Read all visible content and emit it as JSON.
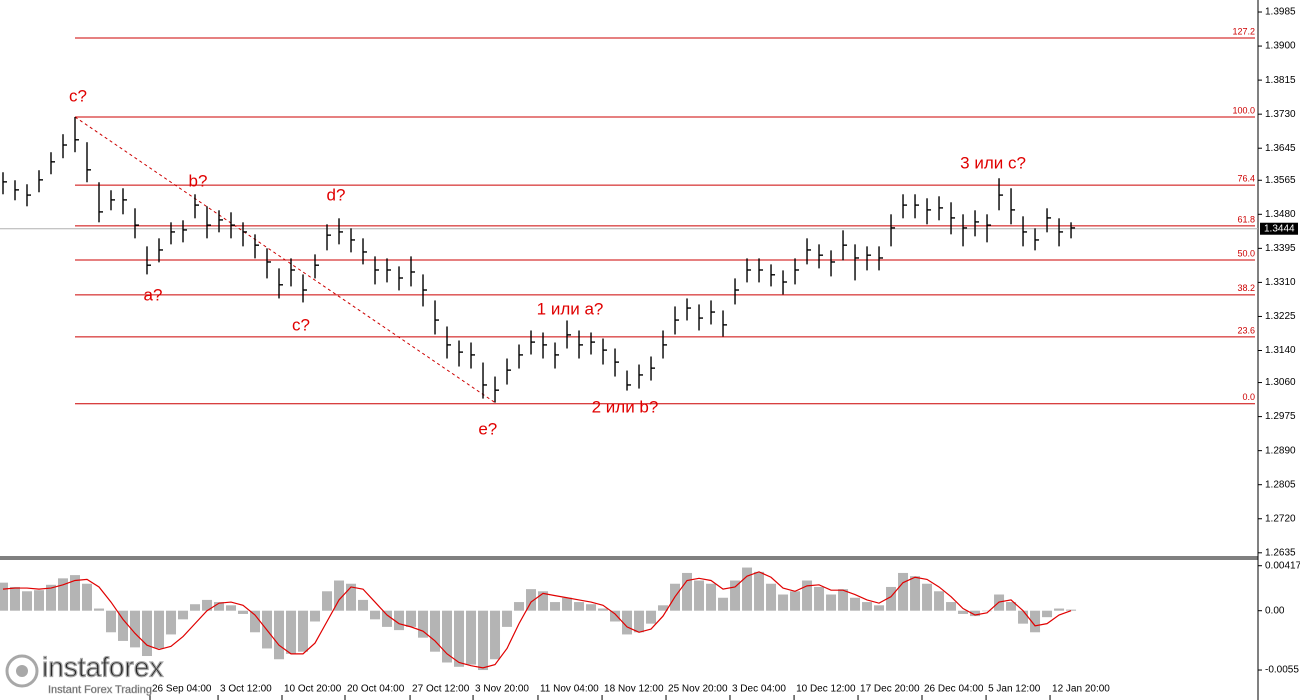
{
  "chart_data": [
    {
      "type": "ohlc",
      "color": "#000000",
      "fib_color": "#cc0000",
      "label_color": "#e00000",
      "x": [
        0,
        1,
        2,
        3,
        4,
        5,
        6,
        7,
        8,
        9,
        10,
        11,
        12,
        13,
        14,
        15,
        16,
        17,
        18,
        19,
        20,
        21,
        22,
        23,
        24,
        25,
        26,
        27,
        28,
        29,
        30,
        31,
        32,
        33,
        34,
        35,
        36,
        37,
        38,
        39,
        40,
        41,
        42,
        43,
        44,
        45,
        46,
        47,
        48,
        49,
        50,
        51,
        52,
        53,
        54,
        55,
        56,
        57,
        58,
        59,
        60,
        61,
        62,
        63,
        64,
        65,
        66,
        67,
        68,
        69,
        70,
        71,
        72,
        73,
        74,
        75,
        76,
        77,
        78,
        79,
        80,
        81,
        82,
        83,
        84,
        85,
        86,
        87,
        88,
        89
      ],
      "high": [
        1.3585,
        1.3565,
        1.3555,
        1.359,
        1.3635,
        1.368,
        1.3723,
        1.366,
        1.356,
        1.354,
        1.3545,
        1.3495,
        1.34,
        1.342,
        1.346,
        1.3465,
        1.353,
        1.35,
        1.349,
        1.3485,
        1.346,
        1.343,
        1.3395,
        1.3345,
        1.337,
        1.333,
        1.338,
        1.3455,
        1.347,
        1.3445,
        1.342,
        1.3375,
        1.337,
        1.335,
        1.3375,
        1.333,
        1.3265,
        1.32,
        1.3165,
        1.316,
        1.311,
        1.3075,
        1.312,
        1.3155,
        1.319,
        1.3185,
        1.316,
        1.3215,
        1.319,
        1.3185,
        1.317,
        1.3145,
        1.309,
        1.3105,
        1.3125,
        1.319,
        1.325,
        1.327,
        1.3255,
        1.3265,
        1.324,
        1.332,
        1.337,
        1.337,
        1.3355,
        1.334,
        1.337,
        1.342,
        1.3405,
        1.339,
        1.344,
        1.3405,
        1.34,
        1.34,
        1.348,
        1.353,
        1.353,
        1.352,
        1.3525,
        1.351,
        1.348,
        1.349,
        1.348,
        1.357,
        1.3545,
        1.3475,
        1.3445,
        1.3495,
        1.347,
        1.346
      ],
      "low": [
        1.353,
        1.3515,
        1.35,
        1.3535,
        1.358,
        1.362,
        1.3635,
        1.356,
        1.346,
        1.349,
        1.348,
        1.342,
        1.333,
        1.336,
        1.3405,
        1.341,
        1.347,
        1.342,
        1.3435,
        1.342,
        1.34,
        1.337,
        1.332,
        1.327,
        1.33,
        1.326,
        1.332,
        1.339,
        1.3405,
        1.3385,
        1.3355,
        1.3305,
        1.331,
        1.329,
        1.33,
        1.325,
        1.318,
        1.312,
        1.31,
        1.3095,
        1.302,
        1.301,
        1.3055,
        1.3095,
        1.313,
        1.312,
        1.3095,
        1.3145,
        1.312,
        1.313,
        1.3105,
        1.3075,
        1.304,
        1.3045,
        1.3065,
        1.312,
        1.318,
        1.3215,
        1.319,
        1.3205,
        1.3175,
        1.3255,
        1.331,
        1.331,
        1.33,
        1.328,
        1.3305,
        1.3355,
        1.3345,
        1.3325,
        1.3365,
        1.3315,
        1.334,
        1.334,
        1.34,
        1.347,
        1.347,
        1.3455,
        1.3465,
        1.343,
        1.34,
        1.3425,
        1.341,
        1.349,
        1.3455,
        1.34,
        1.339,
        1.3435,
        1.34,
        1.342
      ],
      "close": [
        1.3561,
        1.3541,
        1.3528,
        1.3566,
        1.3611,
        1.3653,
        1.3666,
        1.3591,
        1.3486,
        1.3516,
        1.3516,
        1.3453,
        1.3353,
        1.3391,
        1.3436,
        1.3441,
        1.3503,
        1.3453,
        1.3466,
        1.3453,
        1.3436,
        1.3403,
        1.3361,
        1.3304,
        1.3341,
        1.3291,
        1.3353,
        1.3428,
        1.3436,
        1.3416,
        1.3386,
        1.3341,
        1.3341,
        1.3321,
        1.3336,
        1.3291,
        1.3216,
        1.3154,
        1.3136,
        1.3129,
        1.3054,
        1.3041,
        1.3091,
        1.3129,
        1.3161,
        1.3154,
        1.3129,
        1.3179,
        1.3154,
        1.3161,
        1.3141,
        1.3111,
        1.3054,
        1.3079,
        1.3096,
        1.3154,
        1.3216,
        1.3246,
        1.3221,
        1.3236,
        1.3204,
        1.3291,
        1.3341,
        1.3341,
        1.3329,
        1.3311,
        1.3341,
        1.3391,
        1.3378,
        1.3361,
        1.3403,
        1.3371,
        1.3378,
        1.3371,
        1.3446,
        1.3503,
        1.3503,
        1.3491,
        1.3496,
        1.3471,
        1.3446,
        1.3461,
        1.3453,
        1.3528,
        1.3491,
        1.3436,
        1.3416,
        1.3471,
        1.3436,
        1.3446
      ],
      "xlim": [
        -0.25,
        104.58
      ],
      "ylim": [
        1.2627,
        1.4015
      ],
      "yticks": [
        1.3985,
        {
          "value": 1.39,
          "label": "1.3900"
        },
        1.3815,
        {
          "value": 1.373,
          "label": "1.3730"
        },
        1.3645,
        1.3565,
        {
          "value": 1.348,
          "label": "1.3480"
        },
        1.3395,
        {
          "value": 1.331,
          "label": "1.3310"
        },
        1.3225,
        {
          "value": 1.314,
          "label": "1.3140"
        },
        {
          "value": 1.306,
          "label": "1.3060"
        },
        1.2975,
        {
          "value": 1.289,
          "label": "1.2890"
        },
        1.2805,
        {
          "value": 1.272,
          "label": "1.2720"
        },
        1.2635
      ],
      "last_price": 1.3444,
      "fib_start_bar": 6,
      "fib_levels": [
        {
          "label": "127.2",
          "price": 1.392
        },
        {
          "label": "100.0",
          "price": 1.3723
        },
        {
          "label": "76.4",
          "price": 1.3553
        },
        {
          "label": "61.8",
          "price": 1.3451
        },
        {
          "label": "50.0",
          "price": 1.3366
        },
        {
          "label": "38.2",
          "price": 1.3279
        },
        {
          "label": "23.6",
          "price": 1.3174
        },
        {
          "label": "0.0",
          "price": 1.3007
        }
      ],
      "trendline": {
        "start_bar": 6,
        "start_price": 1.3723,
        "end_bar": 41,
        "end_price": 1.301
      },
      "annotations": [
        {
          "text": "c?",
          "x": 6.25,
          "y": 1.3773
        },
        {
          "text": "b?",
          "x": 16.25,
          "y": 1.3561
        },
        {
          "text": "a?",
          "x": 12.5,
          "y": 1.3276
        },
        {
          "text": "d?",
          "x": 27.75,
          "y": 1.3526
        },
        {
          "text": "c?",
          "x": 24.83,
          "y": 1.3201
        },
        {
          "text": "e?",
          "x": 40.4,
          "y": 1.2942
        },
        {
          "text": "1 или a?",
          "x": 47.25,
          "y": 1.3241
        },
        {
          "text": "2 или b?",
          "x": 51.83,
          "y": 1.2997
        },
        {
          "text": "3 или c?",
          "x": 82.5,
          "y": 1.3606
        }
      ]
    },
    {
      "type": "macd",
      "color": "#b4b4b4",
      "signal_color": "#e00000",
      "x": [
        0,
        1,
        2,
        3,
        4,
        5,
        6,
        7,
        8,
        9,
        10,
        11,
        12,
        13,
        14,
        15,
        16,
        17,
        18,
        19,
        20,
        21,
        22,
        23,
        24,
        25,
        26,
        27,
        28,
        29,
        30,
        31,
        32,
        33,
        34,
        35,
        36,
        37,
        38,
        39,
        40,
        41,
        42,
        43,
        44,
        45,
        46,
        47,
        48,
        49,
        50,
        51,
        52,
        53,
        54,
        55,
        56,
        57,
        58,
        59,
        60,
        61,
        62,
        63,
        64,
        65,
        66,
        67,
        68,
        69,
        70,
        71,
        72,
        73,
        74,
        75,
        76,
        77,
        78,
        79,
        80,
        81,
        82,
        83,
        84,
        85,
        86,
        87,
        88,
        89
      ],
      "values": [
        0.0026,
        0.0022,
        0.0018,
        0.0019,
        0.0024,
        0.003,
        0.0033,
        0.0025,
        0.0002,
        -0.002,
        -0.0028,
        -0.0034,
        -0.0042,
        -0.0035,
        -0.0022,
        -0.0008,
        0.0006,
        0.001,
        0.0008,
        0.0005,
        -0.0003,
        -0.002,
        -0.0035,
        -0.0045,
        -0.004,
        -0.0038,
        -0.001,
        0.0018,
        0.0028,
        0.0025,
        0.001,
        -0.0008,
        -0.0015,
        -0.0018,
        -0.0015,
        -0.0025,
        -0.0038,
        -0.0048,
        -0.0052,
        -0.005,
        -0.0055,
        -0.0045,
        -0.0015,
        0.0008,
        0.002,
        0.0018,
        0.0008,
        0.0012,
        0.0008,
        0.0006,
        0.0002,
        -0.001,
        -0.0022,
        -0.002,
        -0.0012,
        0.0005,
        0.0025,
        0.0035,
        0.0028,
        0.0025,
        0.0012,
        0.0028,
        0.004,
        0.0036,
        0.0025,
        0.0015,
        0.0018,
        0.0028,
        0.0022,
        0.0015,
        0.002,
        0.0012,
        0.0008,
        0.0005,
        0.0022,
        0.0035,
        0.0032,
        0.0025,
        0.0018,
        0.0008,
        -0.0003,
        -0.0005,
        0.0,
        0.0015,
        0.0008,
        -0.0012,
        -0.002,
        -0.0006,
        0.0002,
        0.0001
      ],
      "signal": [
        0.002,
        0.0021,
        0.0021,
        0.002,
        0.0021,
        0.0024,
        0.0028,
        0.0029,
        0.0022,
        0.0008,
        -0.0008,
        -0.0021,
        -0.0032,
        -0.0036,
        -0.0033,
        -0.0024,
        -0.0012,
        0.0,
        0.0007,
        0.0008,
        0.0005,
        -0.0004,
        -0.0018,
        -0.0032,
        -0.004,
        -0.004,
        -0.003,
        -0.001,
        0.001,
        0.0022,
        0.002,
        0.0008,
        -0.0004,
        -0.0012,
        -0.0015,
        -0.0019,
        -0.0028,
        -0.004,
        -0.0048,
        -0.0051,
        -0.0053,
        -0.005,
        -0.0035,
        -0.0012,
        0.0008,
        0.0016,
        0.0014,
        0.0012,
        0.001,
        0.0008,
        0.0005,
        -0.0003,
        -0.0015,
        -0.002,
        -0.0017,
        -0.0005,
        0.0013,
        0.0028,
        0.003,
        0.0028,
        0.002,
        0.0022,
        0.0032,
        0.0036,
        0.0031,
        0.0021,
        0.0018,
        0.0023,
        0.0024,
        0.0019,
        0.0019,
        0.0015,
        0.001,
        0.0007,
        0.0013,
        0.0026,
        0.0031,
        0.0029,
        0.0022,
        0.0013,
        0.0002,
        -0.0004,
        -0.0002,
        0.0008,
        0.001,
        0.0,
        -0.0014,
        -0.0012,
        -0.0004,
        0.0
      ],
      "xlim": [
        -0.25,
        104.58
      ],
      "ylim": [
        -0.008,
        0.0047
      ],
      "yticks": [
        0.00417,
        {
          "value": 0,
          "label": "0.00"
        },
        -0.0055
      ],
      "xticks": [
        {
          "value": 12.25,
          "label": "26 Sep 04:00"
        },
        {
          "value": 17.92,
          "label": "3 Oct 12:00"
        },
        {
          "value": 23.25,
          "label": "10 Oct 20:00"
        },
        {
          "value": 28.5,
          "label": "20 Oct 04:00"
        },
        {
          "value": 33.92,
          "label": "27 Oct 12:00"
        },
        {
          "value": 39.17,
          "label": "3 Nov 20:00"
        },
        {
          "value": 44.58,
          "label": "11 Nov 04:00"
        },
        {
          "value": 49.92,
          "label": "18 Nov 12:00"
        },
        {
          "value": 55.25,
          "label": "25 Nov 20:00"
        },
        {
          "value": 60.58,
          "label": "3 Dec 04:00"
        },
        {
          "value": 65.92,
          "label": "10 Dec 12:00"
        },
        {
          "value": 71.25,
          "label": "17 Dec 20:00"
        },
        {
          "value": 76.58,
          "label": "26 Dec 04:00"
        },
        {
          "value": 81.92,
          "label": "5 Jan 12:00"
        },
        {
          "value": 87.25,
          "label": "12 Jan 20:00"
        }
      ]
    }
  ],
  "watermark": {
    "name": "instaforex",
    "tagline": "Instant Forex Trading"
  }
}
